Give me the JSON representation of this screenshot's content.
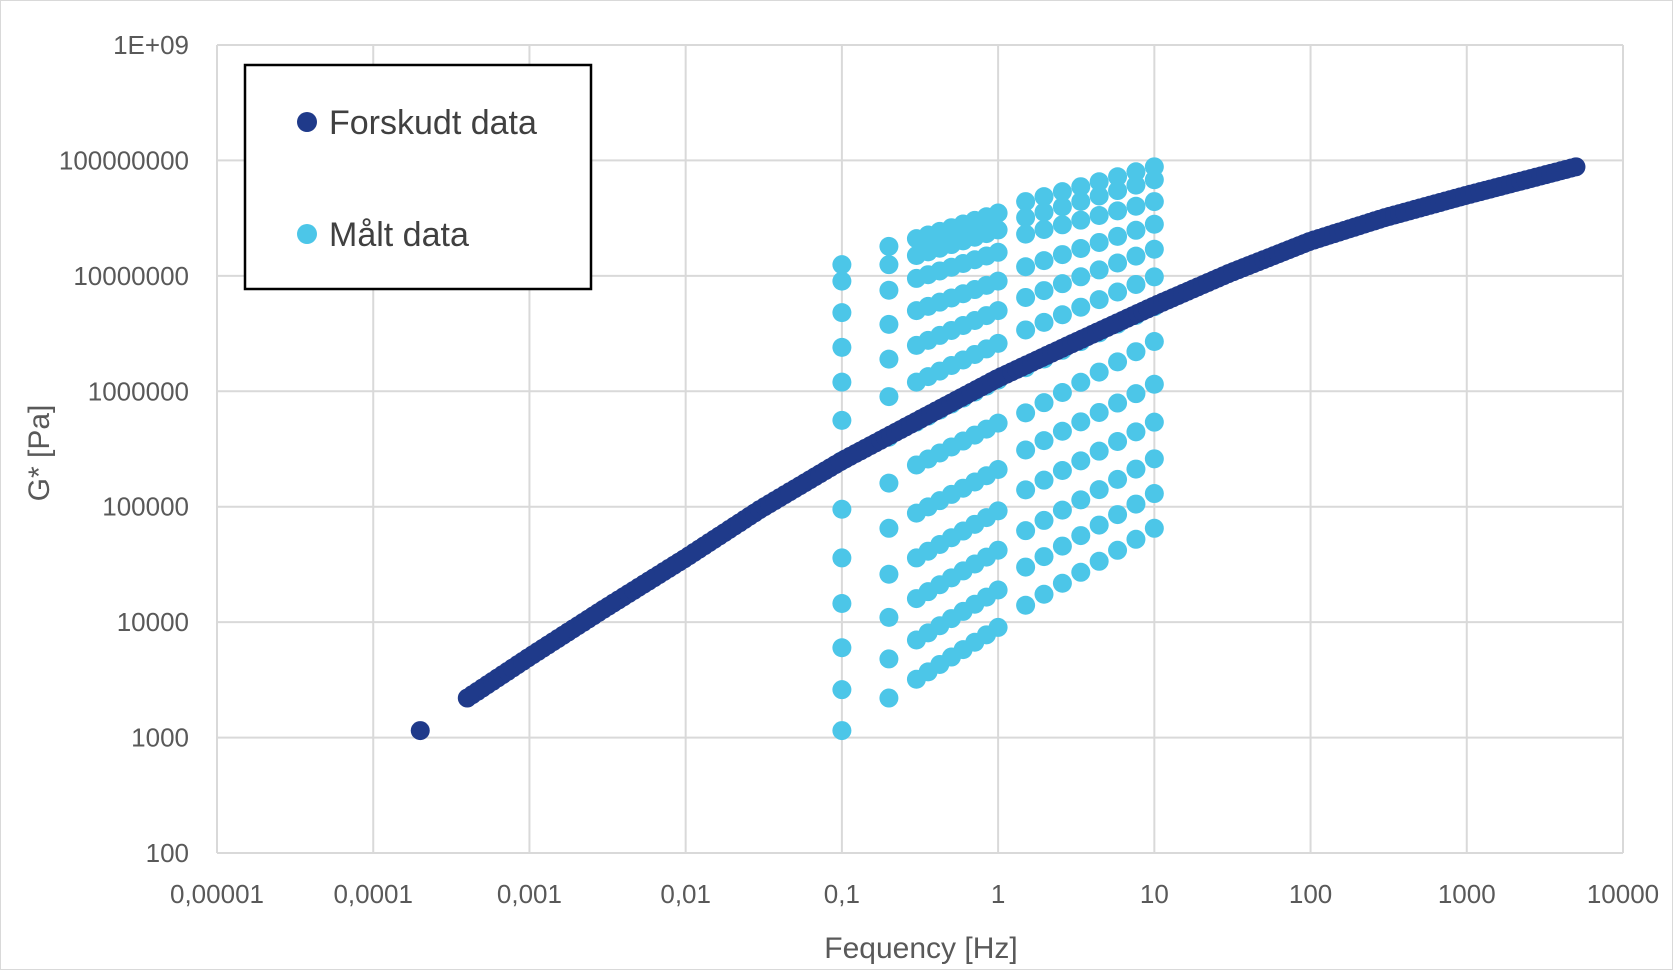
{
  "chart_data": {
    "type": "scatter",
    "title": "",
    "xlabel": "Fequency [Hz]",
    "ylabel": "G* [Pa]",
    "x_scale": "log",
    "y_scale": "log",
    "xlim": [
      1e-05,
      10000
    ],
    "ylim": [
      100,
      1000000000
    ],
    "grid": true,
    "legend_position": "top-left",
    "x_tick_labels": [
      "0,00001",
      "0,0001",
      "0,001",
      "0,01",
      "0,1",
      "1",
      "10",
      "100",
      "1000",
      "10000"
    ],
    "y_tick_labels": [
      "100",
      "1000",
      "10000",
      "100000",
      "1000000",
      "10000000",
      "100000000",
      "1E+09"
    ],
    "series": [
      {
        "name": "Forskudt data",
        "color": "#1f3a8a",
        "curve": {
          "x_min": 0.0002,
          "x_max": 5000,
          "gap_after_first_point": [
            0.0002,
            0.0004
          ],
          "points": [
            [
              0.0002,
              1150
            ],
            [
              0.0004,
              2200
            ],
            [
              0.001,
              5000
            ],
            [
              0.003,
              13000
            ],
            [
              0.01,
              36000
            ],
            [
              0.03,
              95000
            ],
            [
              0.1,
              250000
            ],
            [
              0.3,
              550000
            ],
            [
              1,
              1300000
            ],
            [
              3,
              2600000
            ],
            [
              10,
              5500000
            ],
            [
              30,
              10500000
            ],
            [
              100,
              20000000
            ],
            [
              300,
              32000000
            ],
            [
              1000,
              50000000
            ],
            [
              5000,
              88000000
            ]
          ]
        }
      },
      {
        "name": "Målt data",
        "color": "#4cc6e8",
        "columns": [
          {
            "x_start": 0.1,
            "x_end": 0.1,
            "values_at_start": [
              1150,
              2600,
              6000,
              14500,
              36000,
              95000,
              250000,
              560000,
              1200000,
              2400000,
              4800000,
              9000000,
              12500000
            ]
          },
          {
            "x_start": 0.2,
            "x_end": 0.2,
            "values_at_start": [
              2200,
              4800,
              11000,
              26000,
              65000,
              160000,
              400000,
              900000,
              1900000,
              3800000,
              7500000,
              12500000,
              18000000
            ]
          },
          {
            "x_start": 0.3,
            "x_end": 1,
            "values_at_start": [
              3200,
              7000,
              16000,
              36000,
              88000,
              230000,
              540000,
              1200000,
              2500000,
              5000000,
              9500000,
              15000000,
              21000000
            ],
            "values_at_end": [
              9000,
              19000,
              42000,
              92000,
              210000,
              530000,
              1250000,
              2600000,
              5000000,
              9000000,
              16000000,
              25000000,
              35000000
            ]
          },
          {
            "x_start": 1.5,
            "x_end": 10,
            "values_at_start": [
              14000,
              30000,
              62000,
              140000,
              310000,
              650000,
              1600000,
              3400000,
              6500000,
              12000000,
              23000000,
              32000000,
              44000000
            ],
            "values_at_end": [
              65000,
              130000,
              260000,
              540000,
              1150000,
              2700000,
              5400000,
              9800000,
              17000000,
              28000000,
              44000000,
              68000000,
              88000000
            ]
          }
        ]
      }
    ]
  }
}
